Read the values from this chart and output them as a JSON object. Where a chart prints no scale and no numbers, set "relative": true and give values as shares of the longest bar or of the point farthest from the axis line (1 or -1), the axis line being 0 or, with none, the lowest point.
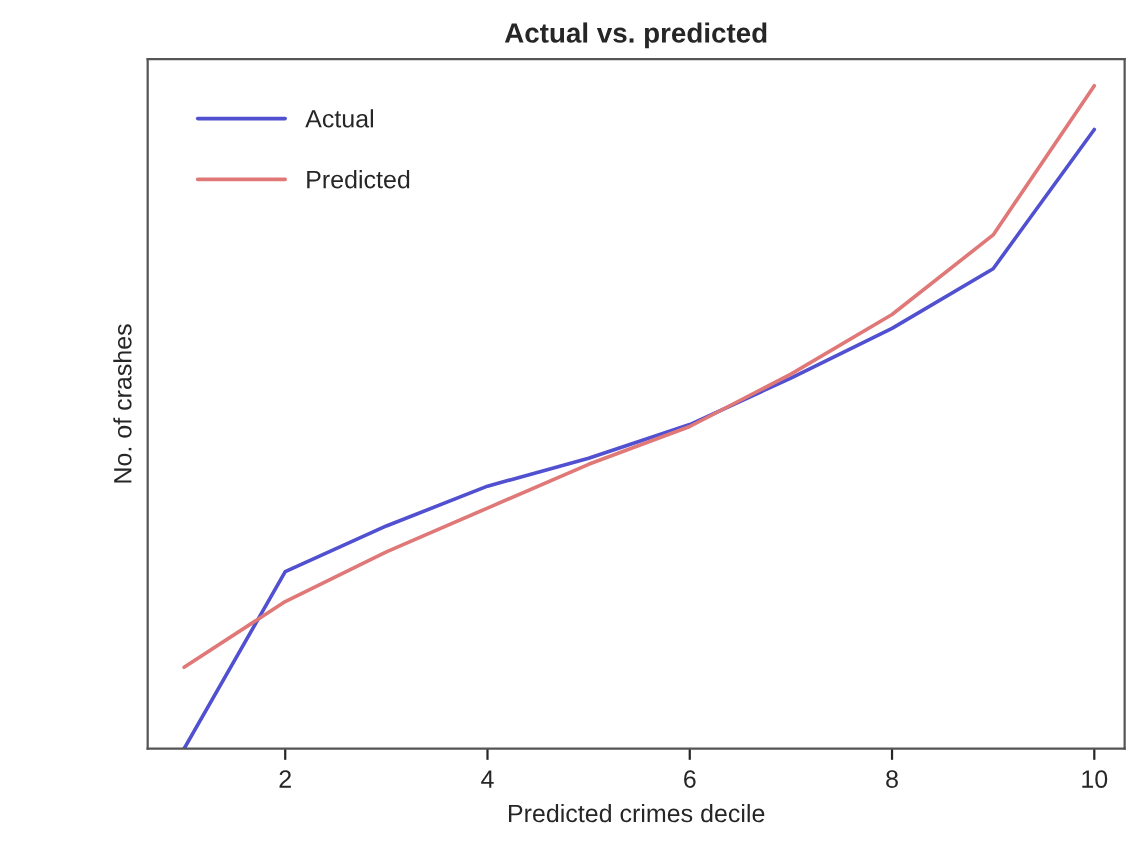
{
  "chart_data": {
    "type": "line",
    "title": "Actual vs. predicted",
    "xlabel": "Predicted crimes decile",
    "ylabel": "No. of crashes",
    "relative": true,
    "x": [
      1,
      2,
      3,
      4,
      5,
      6,
      7,
      8,
      9,
      10
    ],
    "xlim": [
      0.64,
      10.3
    ],
    "xticks": [
      2,
      4,
      6,
      8,
      10
    ],
    "tick_labels": "x",
    "legend": "top left",
    "grid": false,
    "series": [
      {
        "name": "Actual",
        "color": "#5050d0",
        "values": [
          0,
          0.267,
          0.336,
          0.396,
          0.438,
          0.489,
          0.559,
          0.634,
          0.724,
          0.934
        ]
      },
      {
        "name": "Predicted",
        "color": "#e07878",
        "values": [
          0.123,
          0.222,
          0.297,
          0.363,
          0.429,
          0.486,
          0.565,
          0.655,
          0.775,
          1
        ]
      }
    ]
  }
}
